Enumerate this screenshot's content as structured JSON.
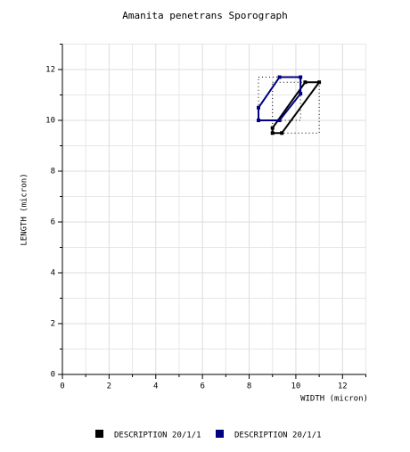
{
  "chart_data": {
    "type": "sporograph",
    "title": "Amanita penetrans Sporograph",
    "x_label": "WIDTH (micron)",
    "y_label": "LENGTH (micron)",
    "xlim": [
      0,
      13
    ],
    "ylim": [
      0,
      13
    ],
    "xticks": [
      0,
      2,
      4,
      6,
      8,
      10,
      12
    ],
    "yticks": [
      0,
      2,
      4,
      6,
      8,
      10,
      12
    ],
    "grid": true,
    "legend": "bottom",
    "series": [
      {
        "name": "DESCRIPTION 20/1/1",
        "color": "#000000",
        "x": [
          9,
          9.4,
          11,
          10.4,
          9
        ],
        "y": [
          9.5,
          9.5,
          11.5,
          11.5,
          9.7
        ]
      },
      {
        "name": "DESCRIPTION 20/1/1",
        "color": "#000080",
        "x": [
          8.4,
          8.4,
          9.3,
          10.2,
          10.2,
          9.3
        ],
        "y": [
          10,
          10.5,
          11.7,
          11.7,
          11.05,
          10
        ]
      }
    ]
  }
}
